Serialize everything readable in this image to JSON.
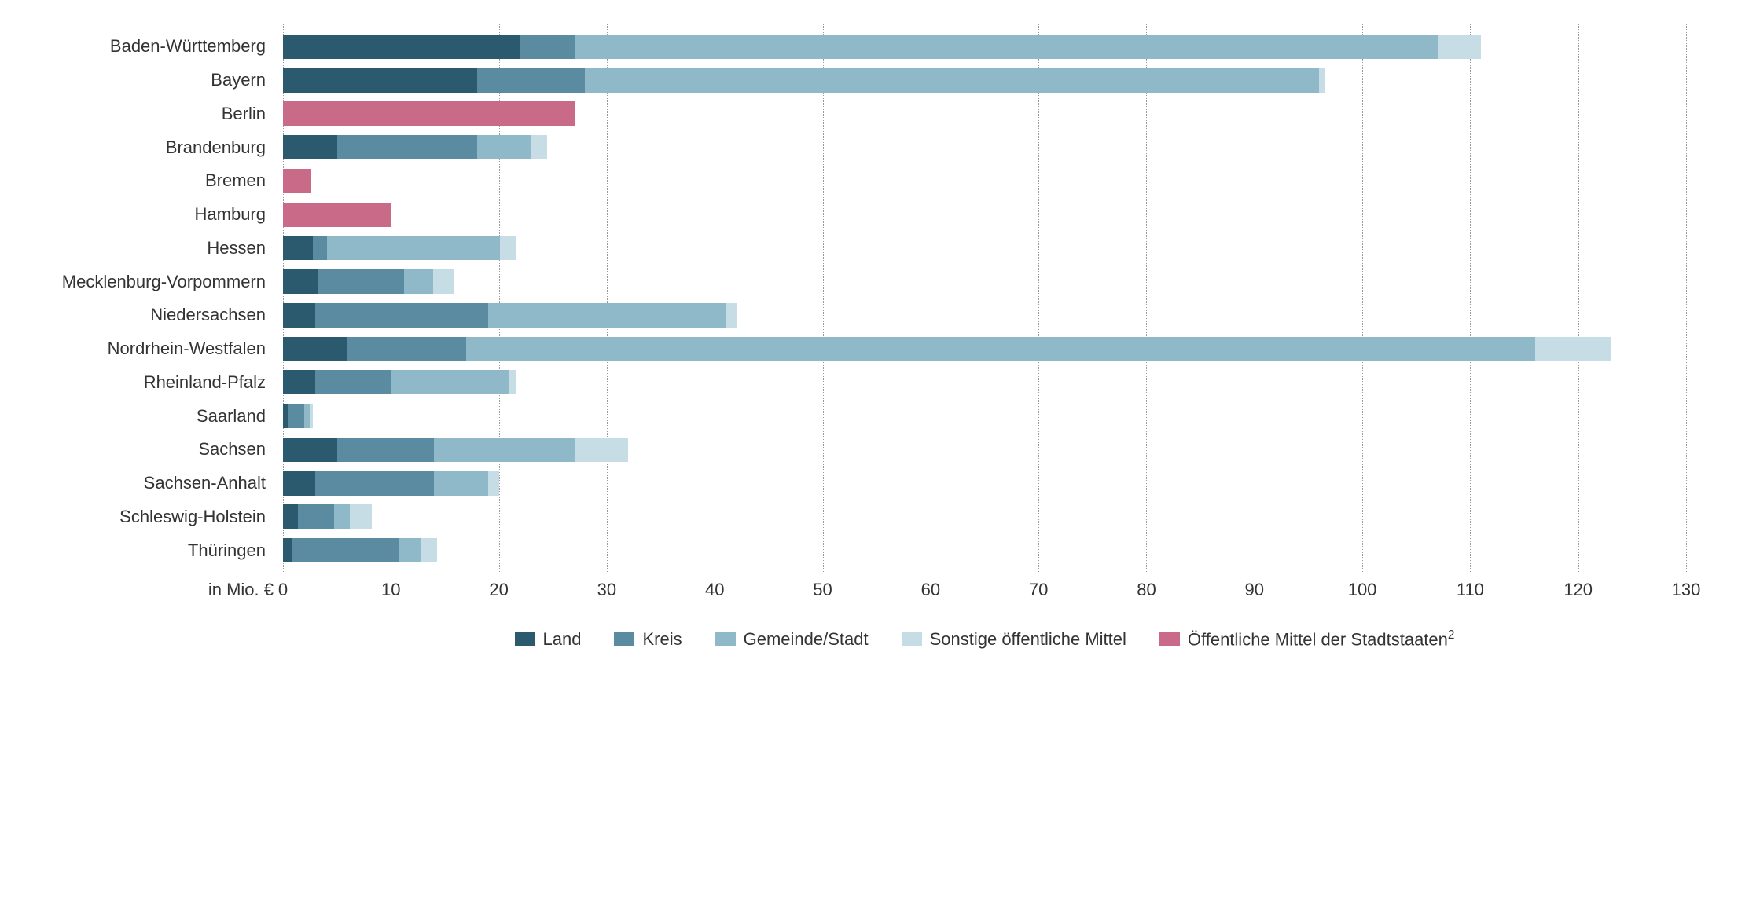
{
  "chart": {
    "type": "stacked-bar-horizontal",
    "x_axis": {
      "title": "in Mio. €",
      "min": 0,
      "max": 130,
      "tick_step": 10,
      "ticks": [
        0,
        10,
        20,
        30,
        40,
        50,
        60,
        70,
        80,
        90,
        100,
        110,
        120,
        130
      ]
    },
    "colors": {
      "land": "#2b5a6f",
      "kreis": "#5a8ba0",
      "gemeinde": "#8fb8c8",
      "sonstige": "#c6dde6",
      "stadtstaat": "#c96a88",
      "grid": "#999999",
      "text": "#333333",
      "background": "#ffffff"
    },
    "legend": [
      {
        "key": "land",
        "label": "Land"
      },
      {
        "key": "kreis",
        "label": "Kreis"
      },
      {
        "key": "gemeinde",
        "label": "Gemeinde/Stadt"
      },
      {
        "key": "sonstige",
        "label": "Sonstige öffentliche Mittel"
      },
      {
        "key": "stadtstaat",
        "label": "Öffentliche Mittel der Stadtstaaten",
        "sup": "2"
      }
    ],
    "bar_height_pct": 72,
    "font_size_pt": 16,
    "categories": [
      {
        "label": "Baden-Württemberg",
        "values": {
          "land": 22,
          "kreis": 5,
          "gemeinde": 80,
          "sonstige": 4,
          "stadtstaat": 0
        }
      },
      {
        "label": "Bayern",
        "values": {
          "land": 18,
          "kreis": 10,
          "gemeinde": 68,
          "sonstige": 0.6,
          "stadtstaat": 0
        }
      },
      {
        "label": "Berlin",
        "values": {
          "land": 0,
          "kreis": 0,
          "gemeinde": 0,
          "sonstige": 0,
          "stadtstaat": 27
        }
      },
      {
        "label": "Brandenburg",
        "values": {
          "land": 5,
          "kreis": 13,
          "gemeinde": 5,
          "sonstige": 1.5,
          "stadtstaat": 0
        }
      },
      {
        "label": "Bremen",
        "values": {
          "land": 0,
          "kreis": 0,
          "gemeinde": 0,
          "sonstige": 0,
          "stadtstaat": 2.6
        }
      },
      {
        "label": "Hamburg",
        "values": {
          "land": 0,
          "kreis": 0,
          "gemeinde": 0,
          "sonstige": 0,
          "stadtstaat": 10
        }
      },
      {
        "label": "Hessen",
        "values": {
          "land": 2.8,
          "kreis": 1.3,
          "gemeinde": 16,
          "sonstige": 1.5,
          "stadtstaat": 0
        }
      },
      {
        "label": "Mecklenburg-Vorpommern",
        "values": {
          "land": 3.2,
          "kreis": 8,
          "gemeinde": 2.7,
          "sonstige": 2,
          "stadtstaat": 0
        }
      },
      {
        "label": "Niedersachsen",
        "values": {
          "land": 3,
          "kreis": 16,
          "gemeinde": 22,
          "sonstige": 1,
          "stadtstaat": 0
        }
      },
      {
        "label": "Nordrhein-Westfalen",
        "values": {
          "land": 6,
          "kreis": 11,
          "gemeinde": 99,
          "sonstige": 7,
          "stadtstaat": 0
        }
      },
      {
        "label": "Rheinland-Pfalz",
        "values": {
          "land": 3,
          "kreis": 7,
          "gemeinde": 11,
          "sonstige": 0.6,
          "stadtstaat": 0
        }
      },
      {
        "label": "Saarland",
        "values": {
          "land": 0.5,
          "kreis": 1.5,
          "gemeinde": 0.5,
          "sonstige": 0.3,
          "stadtstaat": 0
        }
      },
      {
        "label": "Sachsen",
        "values": {
          "land": 5,
          "kreis": 9,
          "gemeinde": 13,
          "sonstige": 5,
          "stadtstaat": 0
        }
      },
      {
        "label": "Sachsen-Anhalt",
        "values": {
          "land": 3,
          "kreis": 11,
          "gemeinde": 5,
          "sonstige": 1,
          "stadtstaat": 0
        }
      },
      {
        "label": "Schleswig-Holstein",
        "values": {
          "land": 1.4,
          "kreis": 3.3,
          "gemeinde": 1.5,
          "sonstige": 2,
          "stadtstaat": 0
        }
      },
      {
        "label": "Thüringen",
        "values": {
          "land": 0.8,
          "kreis": 10,
          "gemeinde": 2,
          "sonstige": 1.5,
          "stadtstaat": 0
        }
      }
    ]
  }
}
